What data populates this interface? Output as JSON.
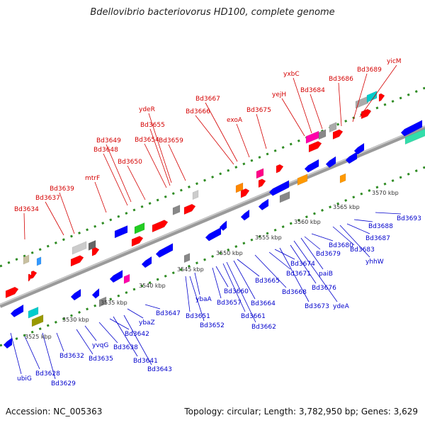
{
  "title": "Bdellovibrio bacteriovorus HD100, complete genome",
  "footer": {
    "accession": "Accession: NC_005363",
    "topology": "Topology: circular; Length: 3,782,950 bp; Genes: 3,629"
  },
  "colors": {
    "forward_label": "#d40000",
    "reverse_label": "#0000cc",
    "backbone": "#888888",
    "dotted_track": "#2e8b22"
  },
  "kbp_labels": [
    "3525 kbp",
    "3530 kbp",
    "3535 kbp",
    "3540 kbp",
    "3545 kbp",
    "3550 kbp",
    "3555 kbp",
    "3560 kbp",
    "3565 kbp",
    "3570 kbp"
  ],
  "forward_labels": [
    "Bd3634",
    "Bd3637",
    "Bd3639",
    "mtrF",
    "Bd3648",
    "Bd3649",
    "Bd3650",
    "Bd3654",
    "Bd3655",
    "ydeR",
    "Bd3659",
    "Bd3666",
    "Bd3667",
    "exoA",
    "Bd3675",
    "yejH",
    "yxbC",
    "Bd3684",
    "Bd3686",
    "Bd3689",
    "yicM"
  ],
  "reverse_labels": [
    "ubiG",
    "Bd3628",
    "Bd3629",
    "Bd3632",
    "Bd3635",
    "yvqG",
    "Bd3638",
    "Bd3641",
    "Bd3642",
    "Bd3643",
    "ybaZ",
    "Bd3647",
    "Bd3651",
    "Bd3652",
    "ybaA",
    "Bd3657",
    "Bd3660",
    "Bd3661",
    "Bd3662",
    "Bd3664",
    "Bd3665",
    "Bd3668",
    "Bd3671",
    "Bd3673",
    "Bd3674",
    "Bd3676",
    "ydeA",
    "paiB",
    "Bd3679",
    "Bd3680",
    "Bd3683",
    "yhhW",
    "Bd3687",
    "Bd3688",
    "Bd3693"
  ]
}
